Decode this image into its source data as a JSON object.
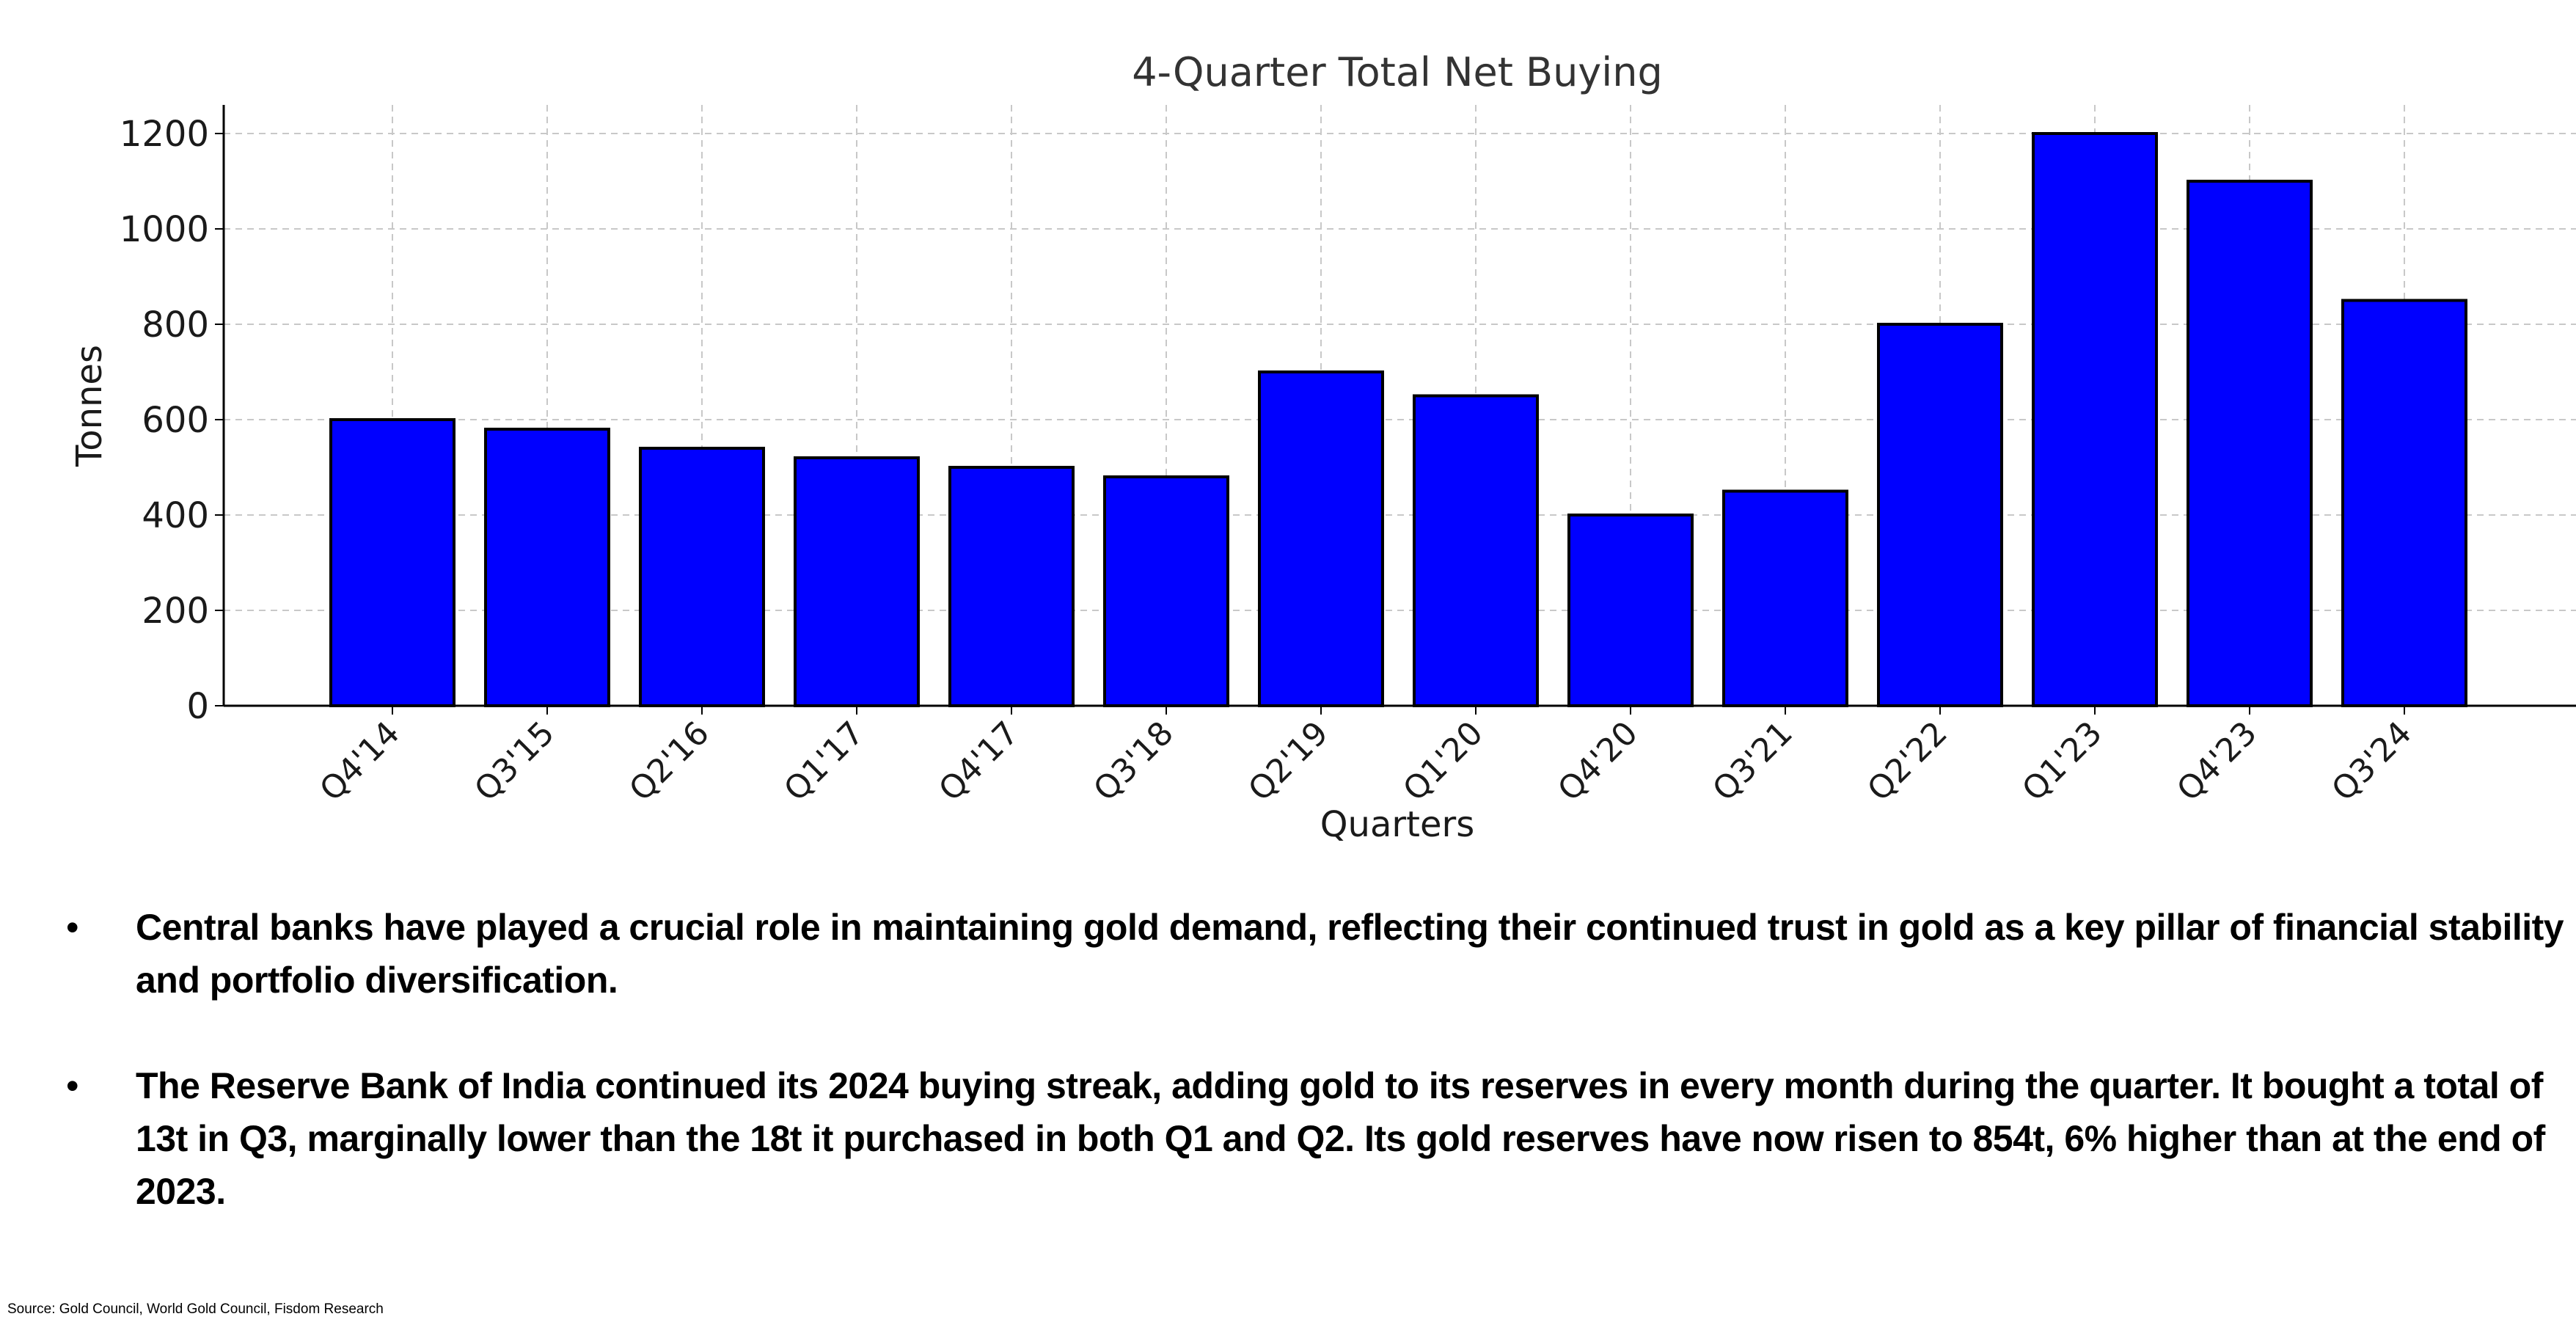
{
  "chart_data": {
    "type": "bar",
    "title": "4-Quarter Total Net Buying",
    "xlabel": "Quarters",
    "ylabel": "Tonnes",
    "categories": [
      "Q4'14",
      "Q3'15",
      "Q2'16",
      "Q1'17",
      "Q4'17",
      "Q3'18",
      "Q2'19",
      "Q1'20",
      "Q4'20",
      "Q3'21",
      "Q2'22",
      "Q1'23",
      "Q4'23",
      "Q3'24"
    ],
    "values": [
      600,
      580,
      540,
      520,
      500,
      480,
      700,
      650,
      400,
      450,
      800,
      1200,
      1100,
      850
    ],
    "ylim": [
      0,
      1260
    ],
    "yticks": [
      "0",
      "200",
      "400",
      "600",
      "800",
      "1000",
      "1200"
    ],
    "bar_color": "#0000ff",
    "bar_edge_color": "#000000",
    "grid": true
  },
  "bullets": [
    "Central banks have played a crucial role in maintaining gold demand, reflecting their continued trust in gold as a key pillar of financial stability and portfolio diversification.",
    "The Reserve Bank of India continued its 2024 buying streak, adding gold to its reserves in every month during the quarter. It bought a total of 13t in Q3, marginally lower than the 18t it purchased in both Q1 and Q2. Its gold reserves have now risen to 854t, 6% higher than at the end of 2023."
  ],
  "bullet_symbol": "•",
  "source": "Source: Gold Council, World Gold Council, Fisdom Research"
}
